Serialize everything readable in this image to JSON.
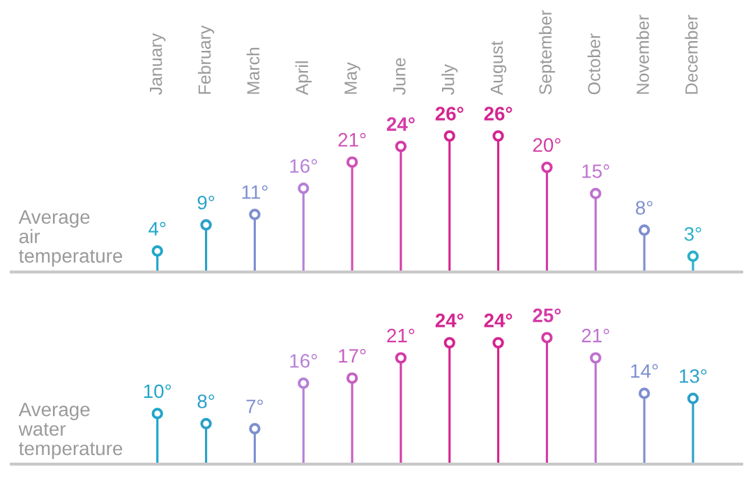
{
  "chart_data": [
    {
      "type": "lollipop",
      "ylabel": "Average air temperature",
      "categories": [
        "January",
        "February",
        "March",
        "April",
        "May",
        "June",
        "July",
        "August",
        "September",
        "October",
        "November",
        "December"
      ],
      "values": [
        4,
        9,
        11,
        16,
        21,
        24,
        26,
        26,
        20,
        15,
        8,
        3
      ],
      "value_labels": [
        "4°",
        "9°",
        "11°",
        "16°",
        "21°",
        "24°",
        "26°",
        "26°",
        "20°",
        "15°",
        "8°",
        "3°"
      ],
      "colors": [
        "#1fa6c9",
        "#2aa0c9",
        "#7e8fd0",
        "#b57fd6",
        "#d050b6",
        "#d43ba6",
        "#d42490",
        "#d42490",
        "#d43ba6",
        "#bf72d0",
        "#7e8fd0",
        "#2ab0c8"
      ],
      "marker": "circle",
      "tick_labels": "x"
    },
    {
      "type": "lollipop",
      "ylabel": "Average water temperature",
      "categories": [
        null,
        null,
        null,
        null,
        null,
        null,
        null,
        null,
        null,
        null,
        null,
        null
      ],
      "values": [
        10,
        8,
        7,
        16,
        17,
        21,
        24,
        24,
        25,
        21,
        14,
        13
      ],
      "value_labels": [
        "10°",
        "8°",
        "7°",
        "16°",
        "17°",
        "21°",
        "24°",
        "24°",
        "25°",
        "21°",
        "14°",
        "13°"
      ],
      "colors": [
        "#1fa6c9",
        "#2aa0c9",
        "#7e8fd0",
        "#b57fd6",
        "#c65fc2",
        "#d43ba6",
        "#d42490",
        "#d42490",
        "#d43ba6",
        "#bf72d0",
        "#7e8fd0",
        "#2aa0c8"
      ],
      "marker": "circle",
      "tick_labels": false
    }
  ]
}
